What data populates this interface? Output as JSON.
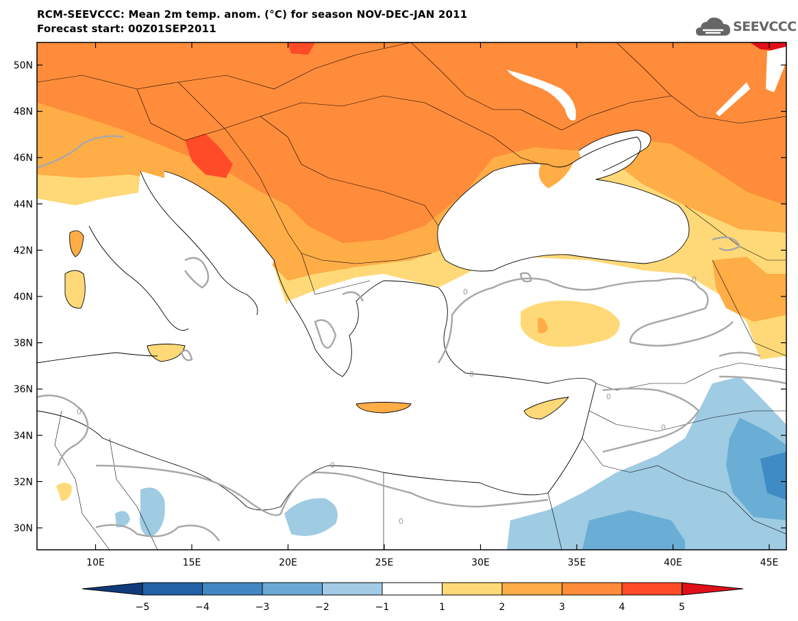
{
  "title": {
    "line1": "RCM-SEEVCCC: Mean 2m temp. anom. (°C) for season NOV-DEC-JAN 2011",
    "line2": "Forecast start: 00Z01SEP2011"
  },
  "logo": {
    "text": "SEEVCCC",
    "icon": "cloud-logo-icon"
  },
  "map": {
    "lat_labels": [
      "50N",
      "48N",
      "46N",
      "44N",
      "42N",
      "40N",
      "38N",
      "36N",
      "34N",
      "32N",
      "30N"
    ],
    "lon_labels": [
      "10E",
      "15E",
      "20E",
      "25E",
      "30E",
      "35E",
      "40E",
      "45E"
    ],
    "contour_labels": [
      "0",
      "0",
      "0",
      "0",
      "0",
      "0",
      "0",
      "0"
    ],
    "colors": {
      "ocean": "#ffffff",
      "neutral": "#ffffff",
      "warm1": "#ffd978",
      "warm2": "#ffad47",
      "warm3": "#ff8c3a",
      "warm4": "#ff4b28",
      "warm5": "#e0101a",
      "cool1": "#9fcbe3",
      "cool2": "#6aaed6",
      "cool3": "#3f8bc6",
      "cool4": "#1f65a8"
    }
  },
  "colorbar": {
    "labels": [
      "−5",
      "−4",
      "−3",
      "−2",
      "−1",
      "1",
      "2",
      "3",
      "4",
      "5"
    ],
    "colors": [
      "#103a7a",
      "#2261a6",
      "#4287c4",
      "#6aa9d5",
      "#a3cbe6",
      "#ffffff",
      "#ffd978",
      "#ffad47",
      "#ff8c3a",
      "#ff4b28",
      "#e0101a"
    ]
  }
}
